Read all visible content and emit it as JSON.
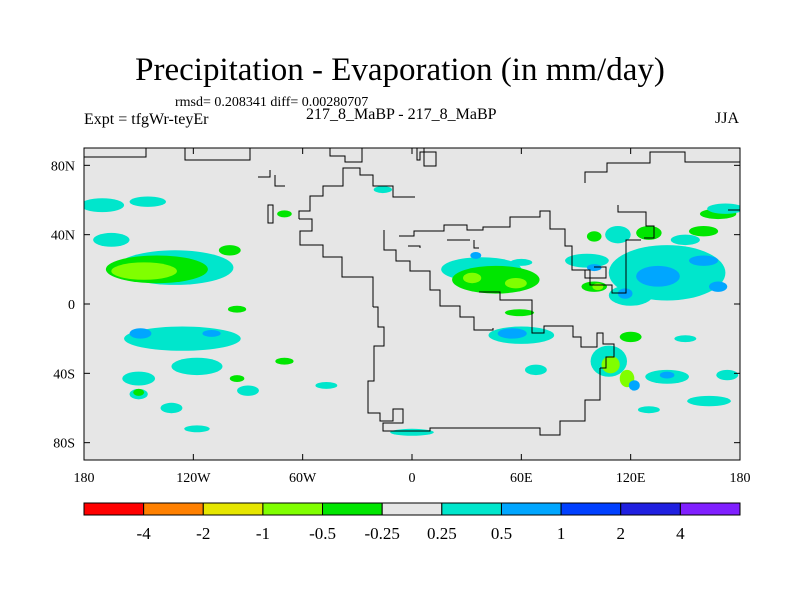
{
  "chart_data": {
    "type": "heatmap",
    "title": "Precipitation - Evaporation (in mm/day)",
    "stats": "rmsd= 0.208341  diff= 0.00280707",
    "left_label": "Expt = tfgWr-teyEr",
    "center_label": "217_8_MaBP - 217_8_MaBP",
    "right_label": "JJA",
    "x_range": [
      -180,
      180
    ],
    "y_range": [
      -90,
      90
    ],
    "x_ticks": [
      {
        "value": -180,
        "label": "180"
      },
      {
        "value": -120,
        "label": "120W"
      },
      {
        "value": -60,
        "label": "60W"
      },
      {
        "value": 0,
        "label": "0"
      },
      {
        "value": 60,
        "label": "60E"
      },
      {
        "value": 120,
        "label": "120E"
      },
      {
        "value": 180,
        "label": "180"
      }
    ],
    "y_ticks": [
      {
        "value": 80,
        "label": "80N"
      },
      {
        "value": 40,
        "label": "40N"
      },
      {
        "value": 0,
        "label": "0"
      },
      {
        "value": -40,
        "label": "40S"
      },
      {
        "value": -80,
        "label": "80S"
      }
    ],
    "colorbar": {
      "labels": [
        "-4",
        "-2",
        "-1",
        "-0.5",
        "-0.25",
        "0.25",
        "0.5",
        "1",
        "2",
        "4"
      ],
      "colors": [
        "#ff0000",
        "#ff8000",
        "#e6e600",
        "#80ff00",
        "#00e600",
        "#e6e6e6",
        "#00e6cc",
        "#00a6ff",
        "#0040ff",
        "#2020e0",
        "#8020ff"
      ]
    },
    "background_color": "#e6e6e6",
    "regions": [
      {
        "level": "0.25-0.5",
        "lon": -170,
        "lat": 57,
        "rx": 12,
        "ry": 4
      },
      {
        "level": "0.25-0.5",
        "lon": -145,
        "lat": 59,
        "rx": 10,
        "ry": 3
      },
      {
        "level": "0.25-0.5",
        "lon": -165,
        "lat": 37,
        "rx": 10,
        "ry": 4
      },
      {
        "level": "0.25-0.5",
        "lon": -130,
        "lat": 21,
        "rx": 32,
        "ry": 10
      },
      {
        "level": "-0.5--0.25",
        "lon": -140,
        "lat": 20,
        "rx": 28,
        "ry": 8
      },
      {
        "level": "-1--0.5",
        "lon": -147,
        "lat": 19,
        "rx": 18,
        "ry": 5
      },
      {
        "level": "0.25-0.5",
        "lon": -126,
        "lat": -20,
        "rx": 32,
        "ry": 7
      },
      {
        "level": "0.5-1",
        "lon": -149,
        "lat": -17,
        "rx": 6,
        "ry": 3
      },
      {
        "level": "0.5-1",
        "lon": -110,
        "lat": -17,
        "rx": 5,
        "ry": 2
      },
      {
        "level": "0.25-0.5",
        "lon": -118,
        "lat": -36,
        "rx": 14,
        "ry": 5
      },
      {
        "level": "0.25-0.5",
        "lon": -150,
        "lat": -43,
        "rx": 9,
        "ry": 4
      },
      {
        "level": "0.25-0.5",
        "lon": -132,
        "lat": -60,
        "rx": 6,
        "ry": 3
      },
      {
        "level": "0.25-0.5",
        "lon": -150,
        "lat": -52,
        "rx": 5,
        "ry": 3
      },
      {
        "level": "0.25-0.5",
        "lon": -118,
        "lat": -72,
        "rx": 7,
        "ry": 2
      },
      {
        "level": "-0.5--0.25",
        "lon": -100,
        "lat": 31,
        "rx": 6,
        "ry": 3
      },
      {
        "level": "-0.5--0.25",
        "lon": -96,
        "lat": -3,
        "rx": 5,
        "ry": 2
      },
      {
        "level": "-0.5--0.25",
        "lon": -70,
        "lat": -33,
        "rx": 5,
        "ry": 2
      },
      {
        "level": "-0.5--0.25",
        "lon": -96,
        "lat": -43,
        "rx": 4,
        "ry": 2
      },
      {
        "level": "0.25-0.5",
        "lon": -90,
        "lat": -50,
        "rx": 6,
        "ry": 3
      },
      {
        "level": "-0.5--0.25",
        "lon": -70,
        "lat": 52,
        "rx": 4,
        "ry": 2
      },
      {
        "level": "-0.5--0.25",
        "lon": -150,
        "lat": -51,
        "rx": 3,
        "ry": 2
      },
      {
        "level": "0.25-0.5",
        "lon": -47,
        "lat": -47,
        "rx": 6,
        "ry": 2
      },
      {
        "level": "0.25-0.5",
        "lon": -16,
        "lat": 66,
        "rx": 5,
        "ry": 2
      },
      {
        "level": "0.25-0.5",
        "lon": 0,
        "lat": -74,
        "rx": 12,
        "ry": 2
      },
      {
        "level": "0.25-0.5",
        "lon": 38,
        "lat": 20,
        "rx": 22,
        "ry": 7
      },
      {
        "level": "-0.5--0.25",
        "lon": 46,
        "lat": 14,
        "rx": 24,
        "ry": 8
      },
      {
        "level": "-1--0.5",
        "lon": 33,
        "lat": 15,
        "rx": 5,
        "ry": 3
      },
      {
        "level": "-1--0.5",
        "lon": 57,
        "lat": 12,
        "rx": 6,
        "ry": 3
      },
      {
        "level": "0.5-1",
        "lon": 35,
        "lat": 28,
        "rx": 3,
        "ry": 2
      },
      {
        "level": "0.25-0.5",
        "lon": 60,
        "lat": 24,
        "rx": 6,
        "ry": 2
      },
      {
        "level": "0.25-0.5",
        "lon": 60,
        "lat": -18,
        "rx": 18,
        "ry": 5
      },
      {
        "level": "0.5-1",
        "lon": 55,
        "lat": -17,
        "rx": 8,
        "ry": 3
      },
      {
        "level": "0.25-0.5",
        "lon": 68,
        "lat": -38,
        "rx": 6,
        "ry": 3
      },
      {
        "level": "-0.5--0.25",
        "lon": 59,
        "lat": -5,
        "rx": 8,
        "ry": 2
      },
      {
        "level": "0.25-0.5",
        "lon": 96,
        "lat": 25,
        "rx": 12,
        "ry": 4
      },
      {
        "level": "0.5-1",
        "lon": 100,
        "lat": 21,
        "rx": 4,
        "ry": 2
      },
      {
        "level": "-0.5--0.25",
        "lon": 100,
        "lat": 10,
        "rx": 7,
        "ry": 3
      },
      {
        "level": "-1--0.5",
        "lon": 102,
        "lat": 10,
        "rx": 3,
        "ry": 2
      },
      {
        "level": "0.25-0.5",
        "lon": 113,
        "lat": 40,
        "rx": 7,
        "ry": 5
      },
      {
        "level": "-0.5--0.25",
        "lon": 100,
        "lat": 39,
        "rx": 4,
        "ry": 3
      },
      {
        "level": "-0.5--0.25",
        "lon": 130,
        "lat": 41,
        "rx": 7,
        "ry": 4
      },
      {
        "level": "0.25-0.5",
        "lon": 140,
        "lat": 18,
        "rx": 32,
        "ry": 16
      },
      {
        "level": "0.5-1",
        "lon": 135,
        "lat": 16,
        "rx": 12,
        "ry": 6
      },
      {
        "level": "0.5-1",
        "lon": 160,
        "lat": 25,
        "rx": 8,
        "ry": 3
      },
      {
        "level": "0.5-1",
        "lon": 168,
        "lat": 10,
        "rx": 5,
        "ry": 3
      },
      {
        "level": "0.25-0.5",
        "lon": 120,
        "lat": 5,
        "rx": 12,
        "ry": 6
      },
      {
        "level": "0.5-1",
        "lon": 117,
        "lat": 6,
        "rx": 4,
        "ry": 3
      },
      {
        "level": "-0.5--0.25",
        "lon": 160,
        "lat": 42,
        "rx": 8,
        "ry": 3
      },
      {
        "level": "-0.5--0.25",
        "lon": 168,
        "lat": 52,
        "rx": 10,
        "ry": 3
      },
      {
        "level": "0.25-0.5",
        "lon": 172,
        "lat": 55,
        "rx": 10,
        "ry": 3
      },
      {
        "level": "0.25-0.5",
        "lon": 150,
        "lat": 37,
        "rx": 8,
        "ry": 3
      },
      {
        "level": "0.25-0.5",
        "lon": 108,
        "lat": -33,
        "rx": 10,
        "ry": 9
      },
      {
        "level": "-1--0.5",
        "lon": 109,
        "lat": -35,
        "rx": 5,
        "ry": 5
      },
      {
        "level": "-1--0.5",
        "lon": 118,
        "lat": -43,
        "rx": 4,
        "ry": 5
      },
      {
        "level": "0.5-1",
        "lon": 122,
        "lat": -47,
        "rx": 3,
        "ry": 3
      },
      {
        "level": "0.25-0.5",
        "lon": 140,
        "lat": -42,
        "rx": 12,
        "ry": 4
      },
      {
        "level": "0.5-1",
        "lon": 140,
        "lat": -41,
        "rx": 4,
        "ry": 2
      },
      {
        "level": "0.25-0.5",
        "lon": 173,
        "lat": -41,
        "rx": 6,
        "ry": 3
      },
      {
        "level": "0.25-0.5",
        "lon": 163,
        "lat": -56,
        "rx": 12,
        "ry": 3
      },
      {
        "level": "0.25-0.5",
        "lon": 150,
        "lat": -20,
        "rx": 6,
        "ry": 2
      },
      {
        "level": "-0.5--0.25",
        "lon": 120,
        "lat": -19,
        "rx": 6,
        "ry": 3
      },
      {
        "level": "0.25-0.5",
        "lon": 130,
        "lat": -61,
        "rx": 6,
        "ry": 2
      }
    ]
  }
}
